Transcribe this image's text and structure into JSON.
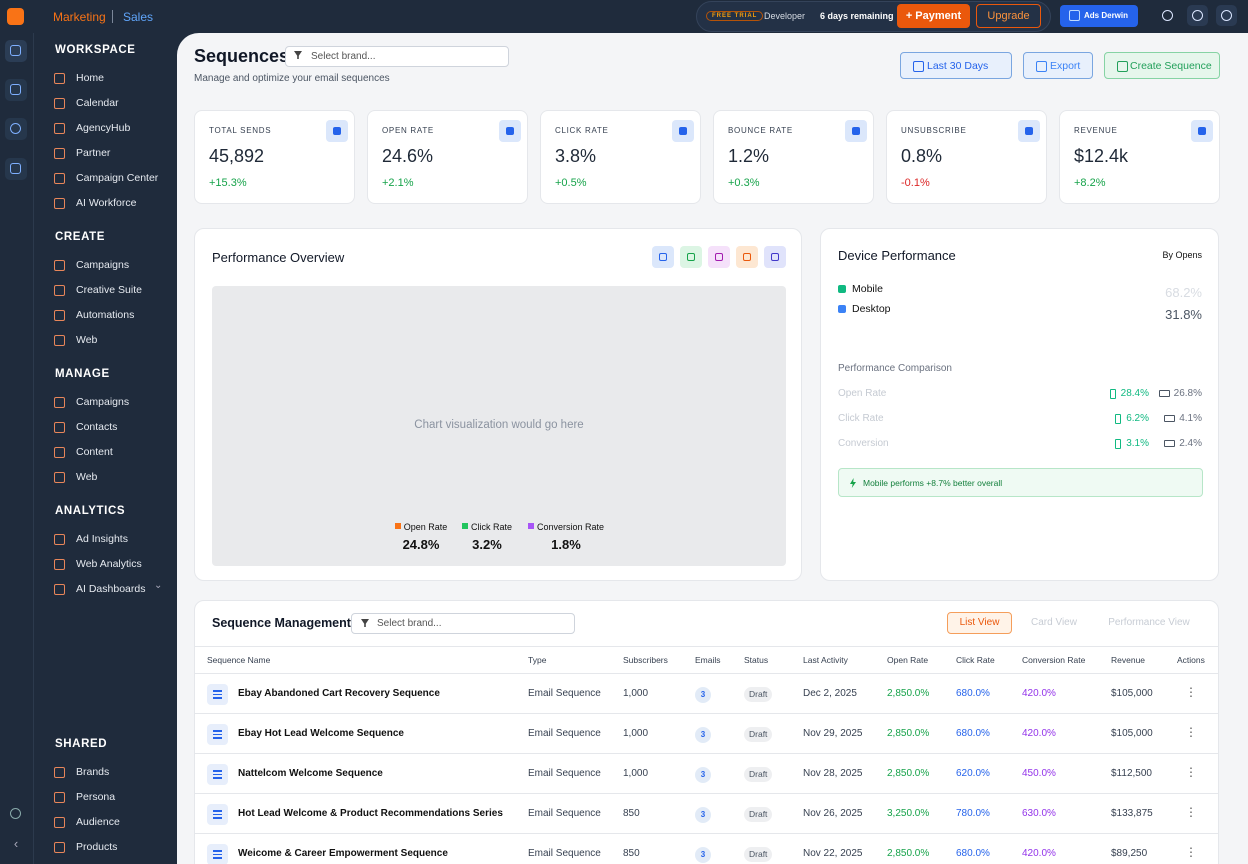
{
  "topbar": {
    "brand": "Marketing",
    "section": "Sales",
    "trial": "FREE TRIAL",
    "plan": "Developer",
    "remaining": "6 days remaining",
    "payment": "+ Payment",
    "upgrade": "Upgrade",
    "account": "Ads Derwin"
  },
  "sidebar": [
    {
      "title": "WORKSPACE",
      "items": [
        "Home",
        "Calendar",
        "AgencyHub",
        "Partner",
        "Campaign Center",
        "AI Workforce"
      ]
    },
    {
      "title": "CREATE",
      "items": [
        "Campaigns",
        "Creative Suite",
        "Automations",
        "Web"
      ]
    },
    {
      "title": "MANAGE",
      "items": [
        "Campaigns",
        "Contacts",
        "Content",
        "Web"
      ]
    },
    {
      "title": "ANALYTICS",
      "items": [
        "Ad Insights",
        "Web Analytics",
        "AI Dashboards"
      ]
    },
    {
      "title": "SHARED",
      "items": [
        "Brands",
        "Persona",
        "Audience",
        "Products"
      ]
    }
  ],
  "header": {
    "title": "Sequences",
    "brand_placeholder": "Select brand...",
    "subtitle": "Manage and optimize your email sequences",
    "buttons": [
      "Last 30 Days",
      "Export",
      "Create Sequence"
    ]
  },
  "stats": [
    {
      "label": "TOTAL SENDS",
      "value": "45,892",
      "change": "+15.3%"
    },
    {
      "label": "OPEN RATE",
      "value": "24.6%",
      "change": "+2.1%"
    },
    {
      "label": "CLICK RATE",
      "value": "3.8%",
      "change": "+0.5%"
    },
    {
      "label": "BOUNCE RATE",
      "value": "1.2%",
      "change": "+0.3%"
    },
    {
      "label": "UNSUBSCRIBE",
      "value": "0.8%",
      "change": "-0.1%"
    },
    {
      "label": "REVENUE",
      "value": "$12.4k",
      "change": "+8.2%"
    }
  ],
  "performance": {
    "title": "Performance Overview",
    "placeholder": "Chart visualization would go here",
    "legend": [
      {
        "name": "Open Rate",
        "value": "24.8%"
      },
      {
        "name": "Click Rate",
        "value": "3.2%"
      },
      {
        "name": "Conversion Rate",
        "value": "1.8%"
      }
    ]
  },
  "device": {
    "title": "Device Performance",
    "sort": "By Opens",
    "devices": [
      {
        "name": "Mobile",
        "value": "68.2%"
      },
      {
        "name": "Desktop",
        "value": "31.8%"
      }
    ],
    "comparison_title": "Performance Comparison",
    "comparison": [
      {
        "label": "Open Rate",
        "mobile": "28.4%",
        "desktop": "26.8%"
      },
      {
        "label": "Click Rate",
        "mobile": "6.2%",
        "desktop": "4.1%"
      },
      {
        "label": "Conversion",
        "mobile": "3.1%",
        "desktop": "2.4%"
      }
    ],
    "note": "Mobile performs +8.7% better overall"
  },
  "table": {
    "title": "Sequence Management",
    "brand_placeholder": "Select brand...",
    "views": [
      "List View",
      "Card View",
      "Performance View"
    ],
    "columns": [
      "Sequence Name",
      "Type",
      "Subscribers",
      "Emails",
      "Status",
      "Last Activity",
      "Open Rate",
      "Click Rate",
      "Conversion Rate",
      "Revenue",
      "Actions"
    ],
    "rows": [
      [
        "Ebay Abandoned Cart Recovery Sequence",
        "Email Sequence",
        "1,000",
        "3",
        "Draft",
        "Dec 2, 2025",
        "2,850.0%",
        "680.0%",
        "420.0%",
        "$105,000"
      ],
      [
        "Ebay Hot Lead Welcome Sequence",
        "Email Sequence",
        "1,000",
        "3",
        "Draft",
        "Nov 29, 2025",
        "2,850.0%",
        "680.0%",
        "420.0%",
        "$105,000"
      ],
      [
        "Nattelcom Welcome Sequence",
        "Email Sequence",
        "1,000",
        "3",
        "Draft",
        "Nov 28, 2025",
        "2,850.0%",
        "620.0%",
        "450.0%",
        "$112,500"
      ],
      [
        "Hot Lead Welcome & Product Recommendations Series",
        "Email Sequence",
        "850",
        "3",
        "Draft",
        "Nov 26, 2025",
        "3,250.0%",
        "780.0%",
        "630.0%",
        "$133,875"
      ],
      [
        "Weicome & Career Empowerment Sequence",
        "Email Sequence",
        "850",
        "3",
        "Draft",
        "Nov 22, 2025",
        "2,850.0%",
        "680.0%",
        "420.0%",
        "$89,250"
      ]
    ]
  }
}
